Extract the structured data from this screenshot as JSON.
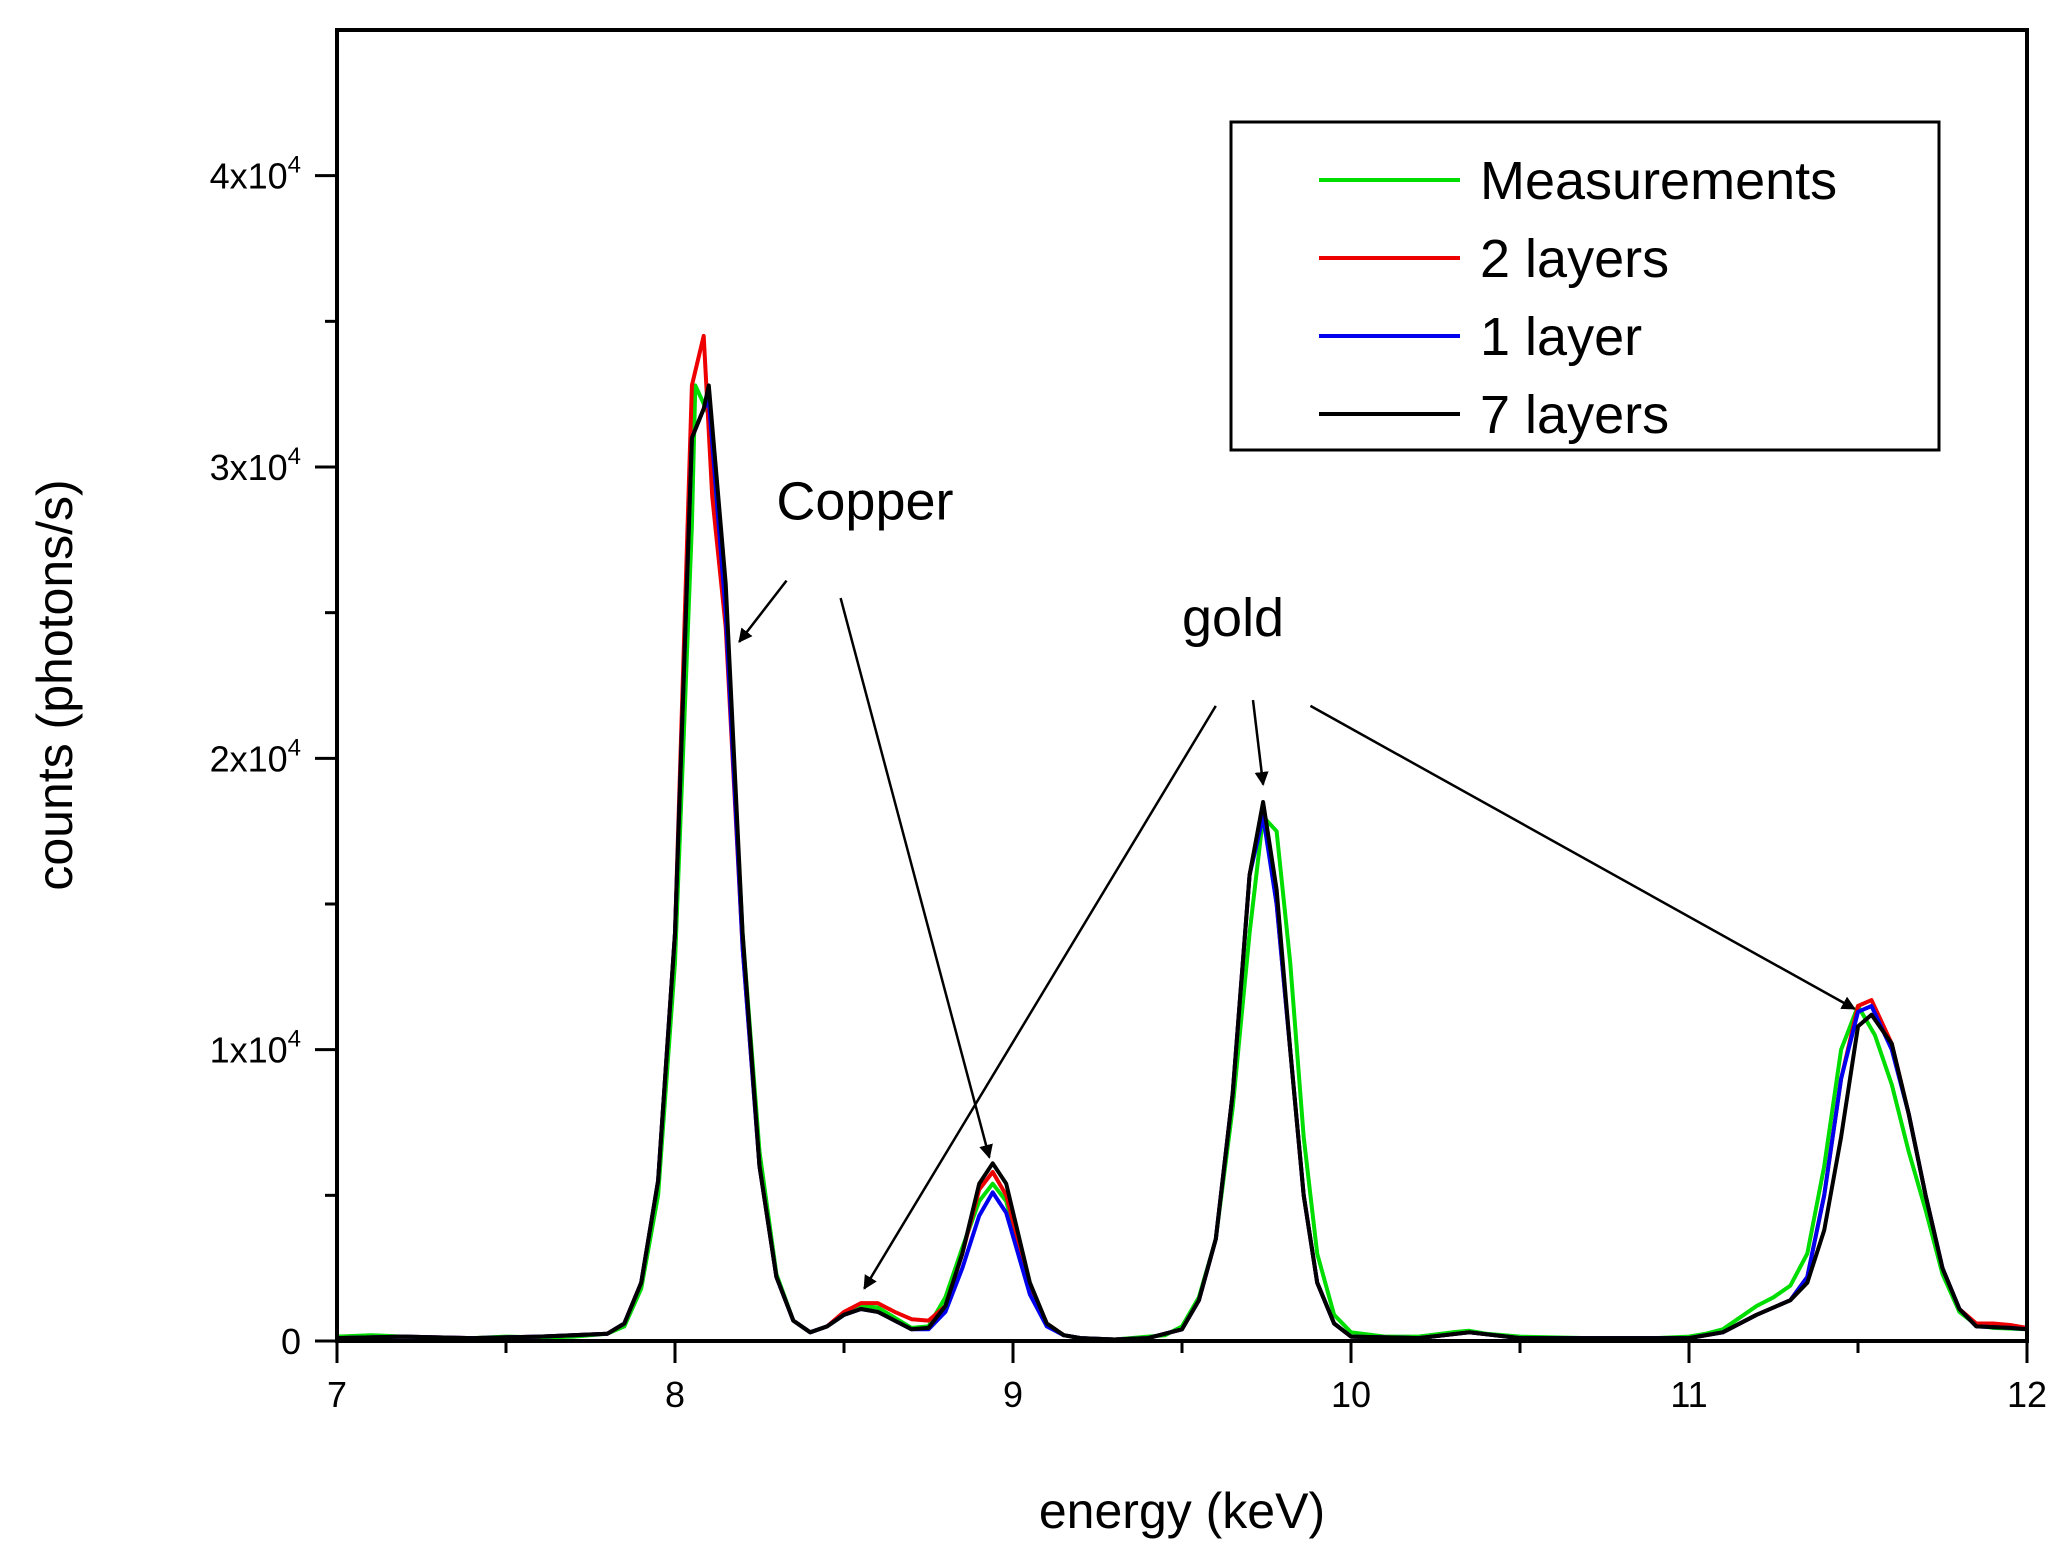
{
  "chart_data": {
    "type": "line",
    "title": "",
    "xlabel": "energy (keV)",
    "ylabel": "counts (photons/s)",
    "xlim": [
      7,
      12
    ],
    "ylim": [
      0,
      45000
    ],
    "x_ticks": [
      7,
      8,
      9,
      10,
      11,
      12
    ],
    "x_tick_labels": [
      "7",
      "8",
      "9",
      "10",
      "11",
      "12"
    ],
    "x_minor_step": 0.5,
    "y_ticks": [
      {
        "value": 0,
        "base": "0",
        "exp": ""
      },
      {
        "value": 10000,
        "base": "1x10",
        "exp": "4"
      },
      {
        "value": 20000,
        "base": "2x10",
        "exp": "4"
      },
      {
        "value": 30000,
        "base": "3x10",
        "exp": "4"
      },
      {
        "value": 40000,
        "base": "4x10",
        "exp": "4"
      }
    ],
    "y_minor_step": 5000,
    "grid": false,
    "legend_position": "top-right",
    "series": [
      {
        "name": "Measurements",
        "color": "#00dd00",
        "points": [
          [
            7.0,
            150
          ],
          [
            7.1,
            200
          ],
          [
            7.2,
            150
          ],
          [
            7.3,
            100
          ],
          [
            7.4,
            100
          ],
          [
            7.5,
            150
          ],
          [
            7.6,
            120
          ],
          [
            7.7,
            150
          ],
          [
            7.8,
            250
          ],
          [
            7.85,
            500
          ],
          [
            7.9,
            1800
          ],
          [
            7.95,
            5000
          ],
          [
            8.0,
            13000
          ],
          [
            8.05,
            28000
          ],
          [
            8.06,
            32800
          ],
          [
            8.08,
            32300
          ],
          [
            8.1,
            31800
          ],
          [
            8.15,
            25000
          ],
          [
            8.2,
            14000
          ],
          [
            8.25,
            6500
          ],
          [
            8.3,
            2300
          ],
          [
            8.35,
            700
          ],
          [
            8.4,
            300
          ],
          [
            8.45,
            500
          ],
          [
            8.5,
            900
          ],
          [
            8.55,
            1200
          ],
          [
            8.6,
            1150
          ],
          [
            8.65,
            800
          ],
          [
            8.7,
            450
          ],
          [
            8.75,
            500
          ],
          [
            8.8,
            1500
          ],
          [
            8.85,
            3200
          ],
          [
            8.9,
            4800
          ],
          [
            8.94,
            5400
          ],
          [
            8.98,
            4800
          ],
          [
            9.05,
            1800
          ],
          [
            9.1,
            600
          ],
          [
            9.15,
            200
          ],
          [
            9.2,
            100
          ],
          [
            9.3,
            50
          ],
          [
            9.4,
            150
          ],
          [
            9.45,
            200
          ],
          [
            9.5,
            500
          ],
          [
            9.55,
            1500
          ],
          [
            9.6,
            3500
          ],
          [
            9.65,
            8000
          ],
          [
            9.7,
            14000
          ],
          [
            9.74,
            18000
          ],
          [
            9.78,
            17500
          ],
          [
            9.82,
            13000
          ],
          [
            9.86,
            7000
          ],
          [
            9.9,
            3000
          ],
          [
            9.95,
            900
          ],
          [
            10.0,
            300
          ],
          [
            10.1,
            150
          ],
          [
            10.2,
            150
          ],
          [
            10.3,
            300
          ],
          [
            10.35,
            350
          ],
          [
            10.4,
            250
          ],
          [
            10.5,
            150
          ],
          [
            10.7,
            100
          ],
          [
            10.9,
            100
          ],
          [
            11.0,
            150
          ],
          [
            11.05,
            250
          ],
          [
            11.1,
            400
          ],
          [
            11.15,
            800
          ],
          [
            11.2,
            1200
          ],
          [
            11.25,
            1500
          ],
          [
            11.3,
            1900
          ],
          [
            11.35,
            3000
          ],
          [
            11.4,
            6000
          ],
          [
            11.45,
            10000
          ],
          [
            11.5,
            11500
          ],
          [
            11.55,
            10500
          ],
          [
            11.6,
            8800
          ],
          [
            11.65,
            6500
          ],
          [
            11.7,
            4500
          ],
          [
            11.75,
            2300
          ],
          [
            11.8,
            1000
          ],
          [
            11.85,
            550
          ],
          [
            11.9,
            450
          ],
          [
            12.0,
            400
          ]
        ]
      },
      {
        "name": "2 layers",
        "color": "#ee0000",
        "points": [
          [
            7.0,
            100
          ],
          [
            7.2,
            150
          ],
          [
            7.4,
            100
          ],
          [
            7.6,
            150
          ],
          [
            7.8,
            250
          ],
          [
            7.85,
            600
          ],
          [
            7.9,
            2000
          ],
          [
            7.95,
            5500
          ],
          [
            8.0,
            14000
          ],
          [
            8.05,
            32800
          ],
          [
            8.085,
            34500
          ],
          [
            8.11,
            29000
          ],
          [
            8.15,
            24500
          ],
          [
            8.2,
            13500
          ],
          [
            8.25,
            6000
          ],
          [
            8.3,
            2200
          ],
          [
            8.35,
            700
          ],
          [
            8.4,
            300
          ],
          [
            8.45,
            500
          ],
          [
            8.5,
            1000
          ],
          [
            8.55,
            1300
          ],
          [
            8.6,
            1300
          ],
          [
            8.65,
            1000
          ],
          [
            8.7,
            750
          ],
          [
            8.75,
            700
          ],
          [
            8.8,
            1200
          ],
          [
            8.85,
            3000
          ],
          [
            8.9,
            5200
          ],
          [
            8.94,
            5800
          ],
          [
            8.98,
            5000
          ],
          [
            9.05,
            1900
          ],
          [
            9.1,
            600
          ],
          [
            9.15,
            200
          ],
          [
            9.2,
            100
          ],
          [
            9.3,
            50
          ],
          [
            9.4,
            100
          ],
          [
            9.5,
            400
          ],
          [
            9.55,
            1400
          ],
          [
            9.6,
            3500
          ],
          [
            9.65,
            8500
          ],
          [
            9.7,
            16000
          ],
          [
            9.74,
            18300
          ],
          [
            9.78,
            15000
          ],
          [
            9.82,
            10000
          ],
          [
            9.86,
            5000
          ],
          [
            9.9,
            2000
          ],
          [
            9.95,
            600
          ],
          [
            10.0,
            150
          ],
          [
            10.2,
            100
          ],
          [
            10.35,
            300
          ],
          [
            10.5,
            100
          ],
          [
            11.0,
            100
          ],
          [
            11.1,
            300
          ],
          [
            11.2,
            900
          ],
          [
            11.3,
            1400
          ],
          [
            11.35,
            2200
          ],
          [
            11.4,
            5000
          ],
          [
            11.45,
            9000
          ],
          [
            11.5,
            11500
          ],
          [
            11.54,
            11700
          ],
          [
            11.6,
            10200
          ],
          [
            11.65,
            7800
          ],
          [
            11.7,
            5000
          ],
          [
            11.75,
            2500
          ],
          [
            11.8,
            1100
          ],
          [
            11.85,
            600
          ],
          [
            11.9,
            600
          ],
          [
            11.95,
            550
          ],
          [
            12.0,
            450
          ]
        ]
      },
      {
        "name": "1 layer",
        "color": "#0000ee",
        "points": [
          [
            7.0,
            100
          ],
          [
            7.2,
            150
          ],
          [
            7.4,
            100
          ],
          [
            7.6,
            150
          ],
          [
            7.8,
            250
          ],
          [
            7.85,
            600
          ],
          [
            7.9,
            2000
          ],
          [
            7.95,
            5500
          ],
          [
            8.0,
            14000
          ],
          [
            8.05,
            31000
          ],
          [
            8.085,
            32000
          ],
          [
            8.1,
            32300
          ],
          [
            8.15,
            25000
          ],
          [
            8.2,
            13500
          ],
          [
            8.25,
            6000
          ],
          [
            8.3,
            2200
          ],
          [
            8.35,
            700
          ],
          [
            8.4,
            300
          ],
          [
            8.45,
            500
          ],
          [
            8.5,
            900
          ],
          [
            8.55,
            1100
          ],
          [
            8.6,
            1000
          ],
          [
            8.65,
            700
          ],
          [
            8.7,
            400
          ],
          [
            8.75,
            400
          ],
          [
            8.8,
            1000
          ],
          [
            8.85,
            2500
          ],
          [
            8.9,
            4300
          ],
          [
            8.94,
            5100
          ],
          [
            8.98,
            4400
          ],
          [
            9.05,
            1600
          ],
          [
            9.1,
            500
          ],
          [
            9.15,
            200
          ],
          [
            9.2,
            100
          ],
          [
            9.3,
            50
          ],
          [
            9.4,
            100
          ],
          [
            9.5,
            400
          ],
          [
            9.55,
            1400
          ],
          [
            9.6,
            3500
          ],
          [
            9.65,
            8500
          ],
          [
            9.7,
            16000
          ],
          [
            9.74,
            18000
          ],
          [
            9.78,
            15000
          ],
          [
            9.82,
            10000
          ],
          [
            9.86,
            5000
          ],
          [
            9.9,
            2000
          ],
          [
            9.95,
            600
          ],
          [
            10.0,
            150
          ],
          [
            10.2,
            100
          ],
          [
            10.35,
            300
          ],
          [
            10.5,
            100
          ],
          [
            11.0,
            100
          ],
          [
            11.1,
            300
          ],
          [
            11.2,
            900
          ],
          [
            11.3,
            1400
          ],
          [
            11.35,
            2200
          ],
          [
            11.4,
            5000
          ],
          [
            11.45,
            9000
          ],
          [
            11.5,
            11300
          ],
          [
            11.54,
            11500
          ],
          [
            11.6,
            10000
          ],
          [
            11.65,
            7800
          ],
          [
            11.7,
            5000
          ],
          [
            11.75,
            2500
          ],
          [
            11.8,
            1100
          ],
          [
            11.85,
            500
          ],
          [
            11.95,
            450
          ],
          [
            12.0,
            400
          ]
        ]
      },
      {
        "name": "7 layers",
        "color": "#000000",
        "points": [
          [
            7.0,
            100
          ],
          [
            7.2,
            150
          ],
          [
            7.4,
            100
          ],
          [
            7.6,
            150
          ],
          [
            7.8,
            250
          ],
          [
            7.85,
            600
          ],
          [
            7.9,
            2000
          ],
          [
            7.95,
            5500
          ],
          [
            8.0,
            14000
          ],
          [
            8.05,
            31000
          ],
          [
            8.085,
            32000
          ],
          [
            8.1,
            32800
          ],
          [
            8.15,
            26000
          ],
          [
            8.2,
            14000
          ],
          [
            8.25,
            6000
          ],
          [
            8.3,
            2200
          ],
          [
            8.35,
            700
          ],
          [
            8.4,
            300
          ],
          [
            8.45,
            500
          ],
          [
            8.5,
            900
          ],
          [
            8.55,
            1100
          ],
          [
            8.6,
            1000
          ],
          [
            8.65,
            700
          ],
          [
            8.7,
            400
          ],
          [
            8.75,
            450
          ],
          [
            8.8,
            1200
          ],
          [
            8.85,
            3000
          ],
          [
            8.9,
            5400
          ],
          [
            8.94,
            6100
          ],
          [
            8.98,
            5400
          ],
          [
            9.05,
            2000
          ],
          [
            9.1,
            600
          ],
          [
            9.15,
            200
          ],
          [
            9.2,
            100
          ],
          [
            9.3,
            50
          ],
          [
            9.4,
            100
          ],
          [
            9.5,
            400
          ],
          [
            9.55,
            1400
          ],
          [
            9.6,
            3500
          ],
          [
            9.65,
            8500
          ],
          [
            9.7,
            16000
          ],
          [
            9.74,
            18500
          ],
          [
            9.78,
            15500
          ],
          [
            9.82,
            10000
          ],
          [
            9.86,
            5000
          ],
          [
            9.9,
            2000
          ],
          [
            9.95,
            600
          ],
          [
            10.0,
            150
          ],
          [
            10.2,
            100
          ],
          [
            10.35,
            300
          ],
          [
            10.5,
            100
          ],
          [
            11.0,
            100
          ],
          [
            11.1,
            300
          ],
          [
            11.2,
            900
          ],
          [
            11.3,
            1400
          ],
          [
            11.35,
            2000
          ],
          [
            11.4,
            3800
          ],
          [
            11.45,
            7000
          ],
          [
            11.5,
            10800
          ],
          [
            11.54,
            11200
          ],
          [
            11.6,
            10200
          ],
          [
            11.65,
            7800
          ],
          [
            11.7,
            5000
          ],
          [
            11.75,
            2500
          ],
          [
            11.8,
            1100
          ],
          [
            11.85,
            500
          ],
          [
            11.95,
            450
          ],
          [
            12.0,
            400
          ]
        ]
      }
    ],
    "annotations": [
      {
        "text": "Copper",
        "label_anchor": [
          8.3,
          28200
        ],
        "arrows": [
          {
            "from": [
              8.33,
              26100
            ],
            "to": [
              8.19,
              24000
            ]
          },
          {
            "from": [
              8.49,
              25500
            ],
            "to": [
              8.93,
              6300
            ]
          }
        ]
      },
      {
        "text": "gold",
        "label_anchor": [
          9.5,
          24200
        ],
        "arrows": [
          {
            "from": [
              9.6,
              21800
            ],
            "to": [
              8.56,
              1800
            ]
          },
          {
            "from": [
              9.71,
              22000
            ],
            "to": [
              9.74,
              19100
            ]
          },
          {
            "from": [
              9.88,
              21800
            ],
            "to": [
              11.49,
              11400
            ]
          }
        ]
      }
    ]
  }
}
